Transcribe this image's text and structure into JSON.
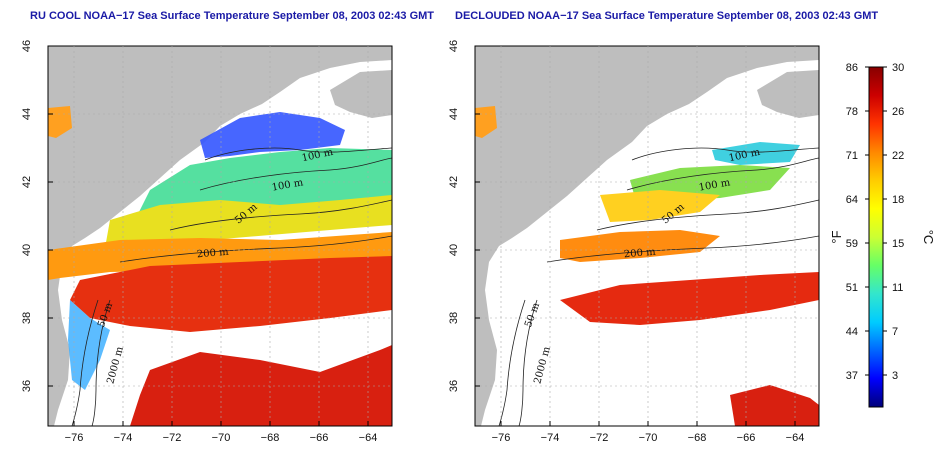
{
  "panels": {
    "left": {
      "title": "RU COOL NOAA−17 Sea Surface Temperature September 08, 2003 02:43 GMT"
    },
    "right": {
      "title": "DECLOUDED NOAA−17 Sea Surface Temperature September 08, 2003 02:43 GMT"
    }
  },
  "axes": {
    "x_ticks": [
      "−76",
      "−74",
      "−72",
      "−70",
      "−68",
      "−66",
      "−64"
    ],
    "y_ticks": [
      "46",
      "44",
      "42",
      "40",
      "38",
      "36"
    ]
  },
  "contour_labels": {
    "left": [
      "100 m",
      "100 m",
      "50 m",
      "200 m",
      "50 m",
      "2000 m"
    ],
    "right": [
      "100 m",
      "100 m",
      "50 m",
      "200 m",
      "50 m",
      "2000 m"
    ]
  },
  "colorbar": {
    "fahrenheit_ticks": [
      "86",
      "78",
      "71",
      "64",
      "59",
      "51",
      "44",
      "37"
    ],
    "celsius_ticks": [
      "30",
      "26",
      "22",
      "18",
      "15",
      "11",
      "7",
      "3"
    ],
    "fahrenheit_unit": "°F",
    "celsius_unit": "°C",
    "colors": [
      "#00007a",
      "#0000ff",
      "#0066ff",
      "#00ccff",
      "#33e6cc",
      "#66ff66",
      "#ccff33",
      "#ffff00",
      "#ffcc00",
      "#ff8800",
      "#ff3300",
      "#cc0000",
      "#880000"
    ]
  },
  "colors": {
    "land": "#bebebe",
    "title": "#1a1aa6",
    "grid": "#aaaaaa",
    "contour": "#222222"
  }
}
